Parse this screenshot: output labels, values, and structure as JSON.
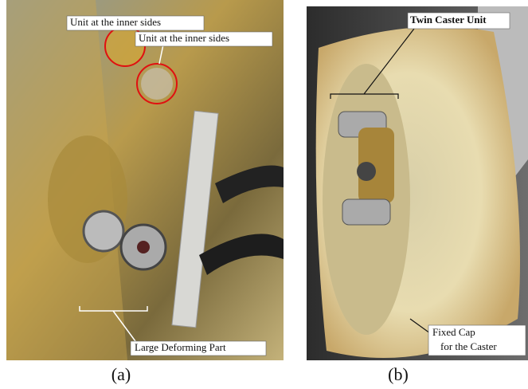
{
  "panels": [
    {
      "caption": "(a)",
      "annotations": [
        "Unit at the inner sides",
        "Unit at the inner sides",
        "Large Deforming Part"
      ]
    },
    {
      "caption": "(b)",
      "annotations": [
        "Twin Caster Unit",
        "Fixed Cap",
        "for the Caster"
      ]
    }
  ]
}
